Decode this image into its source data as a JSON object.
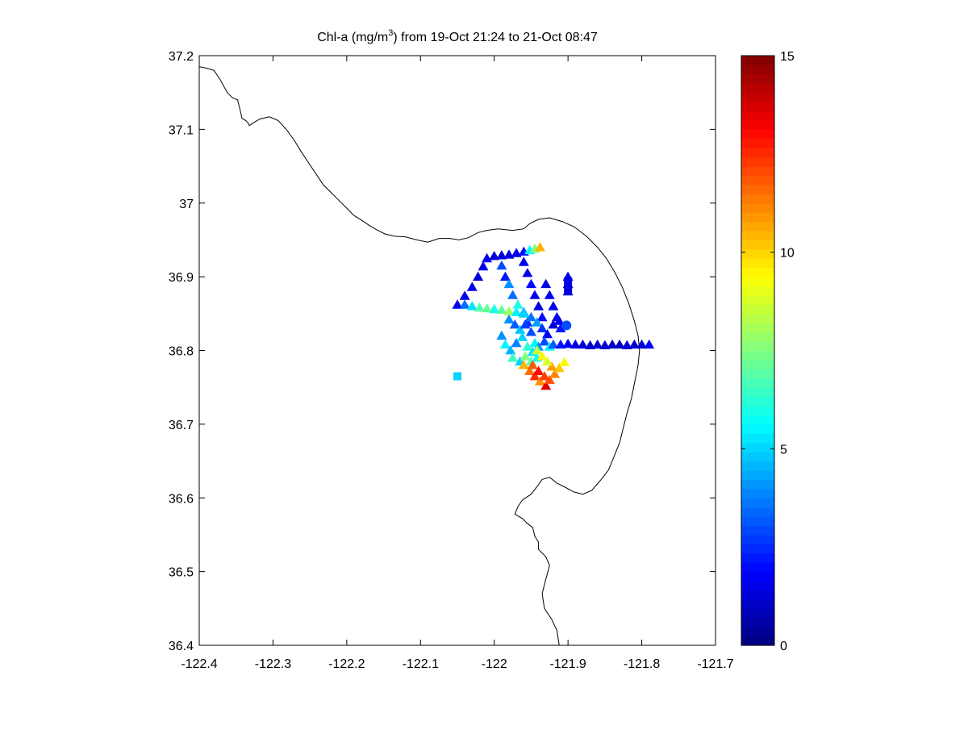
{
  "chart_data": {
    "type": "scatter",
    "title_main": "Chl-a (mg/m",
    "title_sup": "3",
    "title_rest": ") from 19-Oct 21:24 to 21-Oct 08:47",
    "xlim": [
      -122.4,
      -121.7
    ],
    "ylim": [
      36.4,
      37.2
    ],
    "x_ticks": [
      -122.4,
      -122.3,
      -122.2,
      -122.1,
      -122.0,
      -121.9,
      -121.8,
      -121.7
    ],
    "x_tick_labels": [
      "-122.4",
      "-122.3",
      "-122.2",
      "-122.1",
      "-122",
      "-121.9",
      "-121.8",
      "-121.7"
    ],
    "y_ticks": [
      36.4,
      36.5,
      36.6,
      36.7,
      36.8,
      36.9,
      37.0,
      37.1,
      37.2
    ],
    "y_tick_labels": [
      "36.4",
      "36.5",
      "36.6",
      "36.7",
      "36.8",
      "36.9",
      "37",
      "37.1",
      "37.2"
    ],
    "grid": false,
    "colorbar": {
      "colormap": "jet",
      "clim": [
        0,
        15
      ],
      "ticks": [
        0,
        5,
        10,
        15
      ],
      "tick_labels": [
        "0",
        "5",
        "10",
        "15"
      ],
      "placement": "right"
    },
    "coastline": {
      "color": "#000000",
      "segments": [
        [
          [
            -122.4,
            37.185
          ],
          [
            -122.39,
            37.183
          ],
          [
            -122.38,
            37.18
          ],
          [
            -122.372,
            37.168
          ],
          [
            -122.362,
            37.15
          ],
          [
            -122.355,
            37.143
          ],
          [
            -122.348,
            37.14
          ],
          [
            -122.345,
            37.128
          ],
          [
            -122.342,
            37.115
          ],
          [
            -122.337,
            37.112
          ],
          [
            -122.334,
            37.109
          ],
          [
            -122.332,
            37.105
          ],
          [
            -122.328,
            37.108
          ],
          [
            -122.318,
            37.114
          ],
          [
            -122.305,
            37.117
          ],
          [
            -122.293,
            37.112
          ],
          [
            -122.282,
            37.1
          ],
          [
            -122.271,
            37.085
          ],
          [
            -122.262,
            37.07
          ],
          [
            -122.252,
            37.055
          ],
          [
            -122.242,
            37.04
          ],
          [
            -122.232,
            37.025
          ],
          [
            -122.222,
            37.015
          ],
          [
            -122.212,
            37.005
          ],
          [
            -122.2,
            36.993
          ],
          [
            -122.19,
            36.983
          ],
          [
            -122.18,
            36.977
          ],
          [
            -122.17,
            36.97
          ],
          [
            -122.16,
            36.964
          ],
          [
            -122.148,
            36.958
          ],
          [
            -122.135,
            36.955
          ],
          [
            -122.12,
            36.954
          ],
          [
            -122.105,
            36.95
          ],
          [
            -122.09,
            36.947
          ],
          [
            -122.075,
            36.952
          ],
          [
            -122.06,
            36.952
          ],
          [
            -122.048,
            36.95
          ],
          [
            -122.035,
            36.953
          ],
          [
            -122.022,
            36.96
          ],
          [
            -122.01,
            36.963
          ],
          [
            -121.995,
            36.965
          ],
          [
            -121.975,
            36.963
          ],
          [
            -121.96,
            36.965
          ],
          [
            -121.952,
            36.972
          ],
          [
            -121.94,
            36.978
          ],
          [
            -121.925,
            36.98
          ],
          [
            -121.908,
            36.975
          ],
          [
            -121.892,
            36.968
          ],
          [
            -121.875,
            36.955
          ],
          [
            -121.86,
            36.94
          ],
          [
            -121.848,
            36.925
          ],
          [
            -121.836,
            36.905
          ],
          [
            -121.826,
            36.885
          ],
          [
            -121.817,
            36.862
          ],
          [
            -121.81,
            36.84
          ],
          [
            -121.805,
            36.82
          ],
          [
            -121.803,
            36.8
          ],
          [
            -121.805,
            36.78
          ],
          [
            -121.81,
            36.755
          ],
          [
            -121.814,
            36.735
          ],
          [
            -121.82,
            36.715
          ],
          [
            -121.825,
            36.695
          ],
          [
            -121.83,
            36.675
          ],
          [
            -121.838,
            36.655
          ],
          [
            -121.845,
            36.638
          ],
          [
            -121.855,
            36.625
          ],
          [
            -121.868,
            36.61
          ],
          [
            -121.88,
            36.605
          ],
          [
            -121.892,
            36.608
          ],
          [
            -121.905,
            36.615
          ],
          [
            -121.915,
            36.62
          ],
          [
            -121.925,
            36.628
          ],
          [
            -121.935,
            36.625
          ],
          [
            -121.94,
            36.618
          ],
          [
            -121.95,
            36.605
          ],
          [
            -121.962,
            36.597
          ],
          [
            -121.968,
            36.588
          ],
          [
            -121.972,
            36.578
          ],
          [
            -121.962,
            36.572
          ],
          [
            -121.955,
            36.565
          ],
          [
            -121.948,
            36.56
          ],
          [
            -121.945,
            36.548
          ],
          [
            -121.94,
            36.54
          ],
          [
            -121.94,
            36.53
          ],
          [
            -121.93,
            36.52
          ],
          [
            -121.925,
            36.508
          ],
          [
            -121.93,
            36.49
          ],
          [
            -121.935,
            36.47
          ],
          [
            -121.932,
            36.45
          ],
          [
            -121.922,
            36.435
          ],
          [
            -121.915,
            36.42
          ],
          [
            -121.912,
            36.4
          ]
        ]
      ]
    },
    "series": [
      {
        "marker": "triangle",
        "points": [
          [
            -122.05,
            36.862,
            1.6
          ],
          [
            -122.04,
            36.874,
            1.5
          ],
          [
            -122.03,
            36.886,
            1.5
          ],
          [
            -122.022,
            36.9,
            1.4
          ],
          [
            -122.015,
            36.914,
            1.5
          ],
          [
            -122.01,
            36.925,
            1.6
          ],
          [
            -122.0,
            36.928,
            1.3
          ],
          [
            -121.99,
            36.929,
            1.2
          ],
          [
            -121.98,
            36.93,
            1.4
          ],
          [
            -121.97,
            36.932,
            1.6
          ],
          [
            -121.96,
            36.934,
            2.0
          ],
          [
            -121.952,
            36.936,
            5.5
          ],
          [
            -121.945,
            36.938,
            7.5
          ],
          [
            -121.938,
            36.94,
            10.5
          ],
          [
            -122.04,
            36.862,
            3.5
          ],
          [
            -122.03,
            36.86,
            5.2
          ],
          [
            -122.02,
            36.858,
            6.8
          ],
          [
            -122.01,
            36.857,
            7.2
          ],
          [
            -122.0,
            36.856,
            6.0
          ],
          [
            -121.99,
            36.855,
            7.0
          ],
          [
            -121.98,
            36.853,
            8.0
          ],
          [
            -121.97,
            36.852,
            5.5
          ],
          [
            -121.96,
            36.852,
            4.5
          ],
          [
            -121.99,
            36.915,
            3.0
          ],
          [
            -121.985,
            36.9,
            2.2
          ],
          [
            -121.98,
            36.89,
            4.0
          ],
          [
            -121.975,
            36.875,
            3.5
          ],
          [
            -121.968,
            36.862,
            6.0
          ],
          [
            -121.96,
            36.85,
            5.0
          ],
          [
            -121.955,
            36.838,
            2.5
          ],
          [
            -121.95,
            36.825,
            3.0
          ],
          [
            -121.945,
            36.81,
            5.5
          ],
          [
            -121.96,
            36.92,
            1.5
          ],
          [
            -121.955,
            36.905,
            1.5
          ],
          [
            -121.95,
            36.89,
            2.0
          ],
          [
            -121.945,
            36.875,
            1.5
          ],
          [
            -121.94,
            36.86,
            1.5
          ],
          [
            -121.935,
            36.845,
            2.0
          ],
          [
            -121.93,
            36.89,
            1.4
          ],
          [
            -121.925,
            36.875,
            1.6
          ],
          [
            -121.92,
            36.86,
            1.5
          ],
          [
            -121.915,
            36.845,
            1.8
          ],
          [
            -121.91,
            36.83,
            2.2
          ],
          [
            -121.98,
            36.842,
            4.0
          ],
          [
            -121.972,
            36.835,
            3.2
          ],
          [
            -121.965,
            36.828,
            4.8
          ],
          [
            -121.958,
            36.835,
            2.8
          ],
          [
            -121.95,
            36.845,
            3.6
          ],
          [
            -121.942,
            36.838,
            4.2
          ],
          [
            -121.935,
            36.83,
            2.6
          ],
          [
            -121.928,
            36.822,
            1.8
          ],
          [
            -121.92,
            36.835,
            1.3
          ],
          [
            -121.912,
            36.84,
            1.5
          ],
          [
            -121.99,
            36.82,
            4.0
          ],
          [
            -121.985,
            36.808,
            5.5
          ],
          [
            -121.978,
            36.8,
            4.5
          ],
          [
            -121.97,
            36.81,
            3.8
          ],
          [
            -121.962,
            36.818,
            5.0
          ],
          [
            -121.955,
            36.805,
            6.2
          ],
          [
            -121.948,
            36.798,
            5.2
          ],
          [
            -121.94,
            36.805,
            4.2
          ],
          [
            -121.932,
            36.812,
            3.0
          ],
          [
            -121.925,
            36.805,
            5.5
          ],
          [
            -121.975,
            36.79,
            6.5
          ],
          [
            -121.965,
            36.785,
            5.0
          ],
          [
            -121.958,
            36.792,
            7.5
          ],
          [
            -121.95,
            36.785,
            6.8
          ],
          [
            -121.942,
            36.79,
            5.8
          ],
          [
            -121.96,
            36.78,
            10.5
          ],
          [
            -121.952,
            36.772,
            11.5
          ],
          [
            -121.945,
            36.765,
            12.5
          ],
          [
            -121.938,
            36.758,
            11.0
          ],
          [
            -121.93,
            36.752,
            13.5
          ],
          [
            -121.925,
            36.76,
            12.0
          ],
          [
            -121.918,
            36.768,
            11.2
          ],
          [
            -121.912,
            36.776,
            10.2
          ],
          [
            -121.905,
            36.784,
            9.5
          ],
          [
            -121.948,
            36.78,
            11.8
          ],
          [
            -121.94,
            36.772,
            13.0
          ],
          [
            -121.932,
            36.765,
            12.2
          ],
          [
            -121.922,
            36.778,
            10.8
          ],
          [
            -121.942,
            36.8,
            8.5
          ],
          [
            -121.935,
            36.792,
            9.5
          ],
          [
            -121.928,
            36.785,
            8.8
          ],
          [
            -121.92,
            36.808,
            3.2
          ],
          [
            -121.91,
            36.808,
            2.2
          ],
          [
            -121.9,
            36.809,
            1.8
          ],
          [
            -121.89,
            36.808,
            1.4
          ],
          [
            -121.88,
            36.808,
            1.3
          ],
          [
            -121.87,
            36.807,
            1.2
          ],
          [
            -121.86,
            36.808,
            1.1
          ],
          [
            -121.85,
            36.807,
            1.2
          ],
          [
            -121.84,
            36.808,
            1.0
          ],
          [
            -121.83,
            36.808,
            1.1
          ],
          [
            -121.82,
            36.807,
            1.2
          ],
          [
            -121.81,
            36.808,
            1.3
          ],
          [
            -121.8,
            36.808,
            1.2
          ],
          [
            -121.79,
            36.808,
            2.0
          ],
          [
            -121.9,
            36.9,
            1.3
          ],
          [
            -121.9,
            36.89,
            1.2
          ],
          [
            -121.9,
            36.88,
            1.3
          ]
        ]
      },
      {
        "marker": "square",
        "points": [
          [
            -122.05,
            36.765,
            5.0
          ],
          [
            -121.9,
            36.883,
            1.4
          ],
          [
            -121.9,
            36.894,
            1.6
          ]
        ]
      },
      {
        "marker": "circle",
        "points": [
          [
            -121.902,
            36.834,
            3.0
          ]
        ]
      }
    ]
  }
}
